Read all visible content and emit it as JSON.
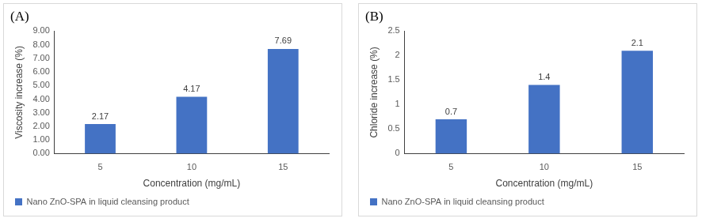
{
  "chart_data": [
    {
      "type": "bar",
      "title": "(A)",
      "categories": [
        "5",
        "10",
        "15"
      ],
      "series": [
        {
          "name": "Nano ZnO-SPA in liquid cleansing product",
          "color": "#4472c4",
          "values": [
            2.17,
            4.17,
            7.69
          ]
        }
      ],
      "x_label": "Concentration (mg/mL)",
      "y_label": "Viscosity increase (%)",
      "ylim": [
        0,
        9
      ],
      "yticks": [
        {
          "value": 0,
          "label": "0.00"
        },
        {
          "value": 1,
          "label": "1.00"
        },
        {
          "value": 2,
          "label": "2.00"
        },
        {
          "value": 3,
          "label": "3.00"
        },
        {
          "value": 4,
          "label": "4.00"
        },
        {
          "value": 5,
          "label": "5.00"
        },
        {
          "value": 6,
          "label": "6.00"
        },
        {
          "value": 7,
          "label": "7.00"
        },
        {
          "value": 8,
          "label": "8.00"
        },
        {
          "value": 9,
          "label": "9.00"
        }
      ],
      "grid": false,
      "legend": "bottom",
      "data_labels": true
    },
    {
      "type": "bar",
      "title": "(B)",
      "categories": [
        "5",
        "10",
        "15"
      ],
      "series": [
        {
          "name": "Nano ZnO-SPA in liquid cleansing product",
          "color": "#4472c4",
          "values": [
            0.7,
            1.4,
            2.1
          ]
        }
      ],
      "x_label": "Concentration (mg/mL)",
      "y_label": "Chloride increase (%)",
      "ylim": [
        0,
        2.5
      ],
      "yticks": [
        0,
        0.5,
        1,
        1.5,
        2,
        2.5
      ],
      "grid": false,
      "legend": "bottom",
      "data_labels": true
    }
  ]
}
